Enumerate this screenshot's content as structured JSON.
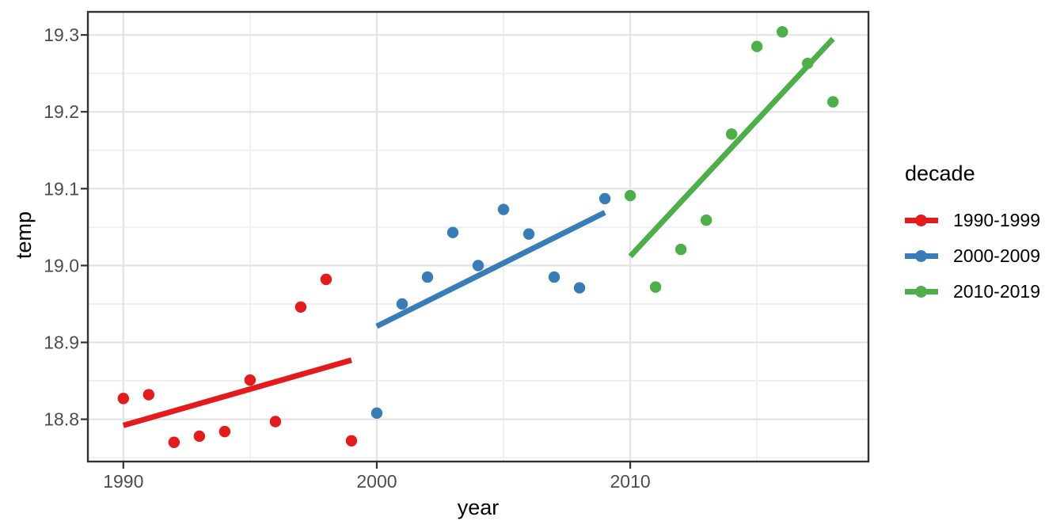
{
  "chart_data": {
    "type": "scatter",
    "title": "",
    "xlabel": "year",
    "ylabel": "temp",
    "xlim": [
      1988.6,
      2019.4
    ],
    "ylim": [
      18.745,
      19.33
    ],
    "grid": "major and minor, light gray on white panel with dark border",
    "x_ticks": [
      {
        "value": 1990,
        "label": "1990"
      },
      {
        "value": 2000,
        "label": "2000"
      },
      {
        "value": 2010,
        "label": "2010"
      }
    ],
    "y_ticks": [
      {
        "value": 18.8,
        "label": "18.8"
      },
      {
        "value": 18.9,
        "label": "18.9"
      },
      {
        "value": 19.0,
        "label": "19.0"
      },
      {
        "value": 19.1,
        "label": "19.1"
      },
      {
        "value": 19.2,
        "label": "19.2"
      },
      {
        "value": 19.3,
        "label": "19.3"
      }
    ],
    "x_minor_breaks": [
      1995,
      2005,
      2015
    ],
    "y_minor_breaks": [
      18.75,
      18.85,
      18.95,
      19.05,
      19.15,
      19.25
    ],
    "legend": {
      "title": "decade",
      "position": "right"
    },
    "series": [
      {
        "name": "1990-1999",
        "color": "#E41A1C",
        "points": {
          "x": [
            1990,
            1991,
            1992,
            1993,
            1994,
            1995,
            1996,
            1997,
            1998,
            1999
          ],
          "y": [
            18.827,
            18.832,
            18.77,
            18.778,
            18.784,
            18.851,
            18.797,
            18.946,
            18.982,
            18.772
          ]
        },
        "trendline": {
          "x": [
            1990,
            1999
          ],
          "y": [
            18.792,
            18.877
          ]
        }
      },
      {
        "name": "2000-2009",
        "color": "#377EB8",
        "points": {
          "x": [
            2000,
            2001,
            2002,
            2003,
            2004,
            2005,
            2006,
            2007,
            2008,
            2009
          ],
          "y": [
            18.808,
            18.95,
            18.985,
            19.043,
            19.0,
            19.073,
            19.041,
            18.985,
            18.971,
            19.087
          ]
        },
        "trendline": {
          "x": [
            2000,
            2009
          ],
          "y": [
            18.921,
            19.069
          ]
        }
      },
      {
        "name": "2010-2019",
        "color": "#4DAF4A",
        "points": {
          "x": [
            2010,
            2011,
            2012,
            2013,
            2014,
            2015,
            2016,
            2017,
            2018
          ],
          "y": [
            19.091,
            18.972,
            19.021,
            19.059,
            19.171,
            19.285,
            19.304,
            19.263,
            19.213
          ]
        },
        "trendline": {
          "x": [
            2010,
            2018
          ],
          "y": [
            19.012,
            19.295
          ]
        }
      }
    ]
  }
}
